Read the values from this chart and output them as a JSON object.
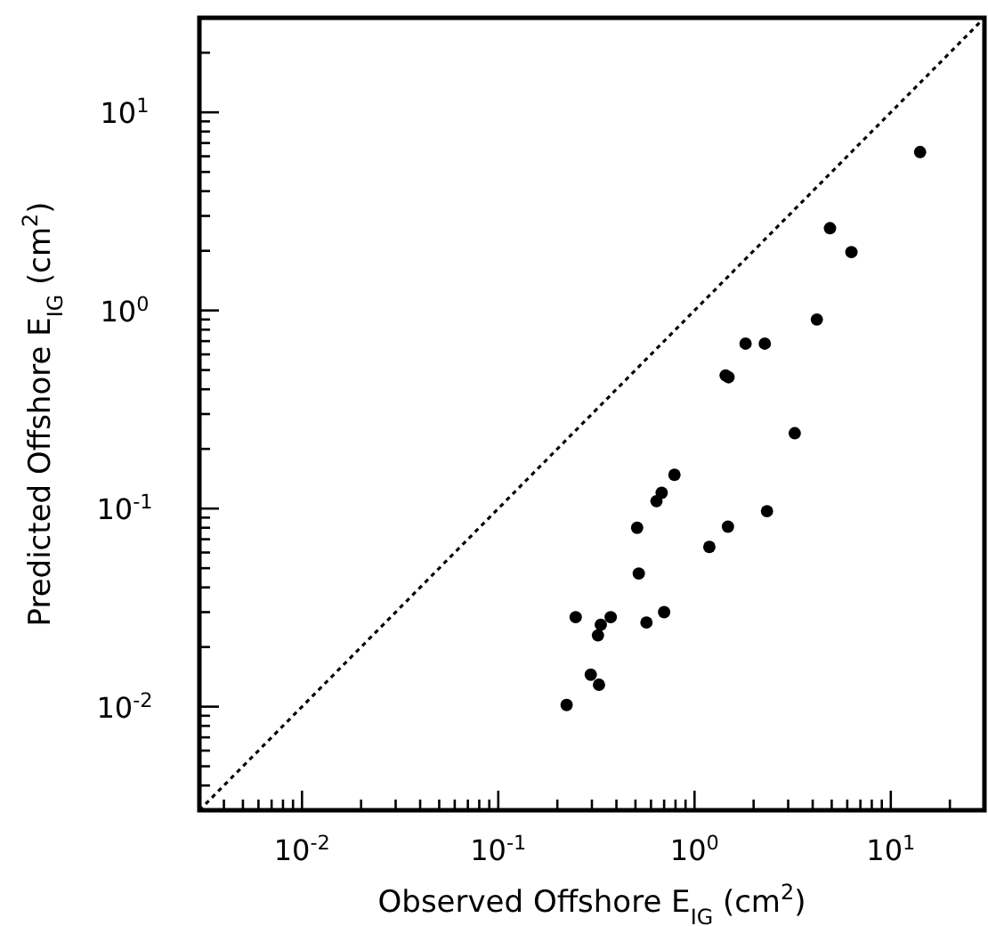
{
  "chart_data": {
    "type": "scatter",
    "xlabel": "Observed Offshore E$_{IG}$ (cm$^{2}$)",
    "ylabel": "Predicted Offshore E$_{IG}$ (cm$^{2}$)",
    "log": "xy",
    "grid": false,
    "xlim": [
      0.003,
      30
    ],
    "ylim": [
      0.003,
      30
    ],
    "xticks": [
      {
        "value": 0.004,
        "label": null
      },
      {
        "value": 0.005,
        "label": null
      },
      {
        "value": 0.006,
        "label": null
      },
      {
        "value": 0.007,
        "label": null
      },
      {
        "value": 0.008,
        "label": null
      },
      {
        "value": 0.009,
        "label": null
      },
      {
        "value": 0.01,
        "label": "10$^{-2}$"
      },
      {
        "value": 0.02,
        "label": null
      },
      {
        "value": 0.03,
        "label": null
      },
      {
        "value": 0.04,
        "label": null
      },
      {
        "value": 0.05,
        "label": null
      },
      {
        "value": 0.06,
        "label": null
      },
      {
        "value": 0.07,
        "label": null
      },
      {
        "value": 0.08,
        "label": null
      },
      {
        "value": 0.09,
        "label": null
      },
      {
        "value": 0.1,
        "label": "10$^{-1}$"
      },
      {
        "value": 0.2,
        "label": null
      },
      {
        "value": 0.3,
        "label": null
      },
      {
        "value": 0.4,
        "label": null
      },
      {
        "value": 0.5,
        "label": null
      },
      {
        "value": 0.6,
        "label": null
      },
      {
        "value": 0.7,
        "label": null
      },
      {
        "value": 0.8,
        "label": null
      },
      {
        "value": 0.9,
        "label": null
      },
      {
        "value": 1,
        "label": "10$^{0}$"
      },
      {
        "value": 2,
        "label": null
      },
      {
        "value": 3,
        "label": null
      },
      {
        "value": 4,
        "label": null
      },
      {
        "value": 5,
        "label": null
      },
      {
        "value": 6,
        "label": null
      },
      {
        "value": 7,
        "label": null
      },
      {
        "value": 8,
        "label": null
      },
      {
        "value": 9,
        "label": null
      },
      {
        "value": 10,
        "label": "10$^{1}$"
      },
      {
        "value": 20,
        "label": null
      }
    ],
    "yticks": [
      {
        "value": 0.004,
        "label": null
      },
      {
        "value": 0.005,
        "label": null
      },
      {
        "value": 0.006,
        "label": null
      },
      {
        "value": 0.007,
        "label": null
      },
      {
        "value": 0.008,
        "label": null
      },
      {
        "value": 0.009,
        "label": null
      },
      {
        "value": 0.01,
        "label": "10$^{-2}$"
      },
      {
        "value": 0.02,
        "label": null
      },
      {
        "value": 0.03,
        "label": null
      },
      {
        "value": 0.04,
        "label": null
      },
      {
        "value": 0.05,
        "label": null
      },
      {
        "value": 0.06,
        "label": null
      },
      {
        "value": 0.07,
        "label": null
      },
      {
        "value": 0.08,
        "label": null
      },
      {
        "value": 0.09,
        "label": null
      },
      {
        "value": 0.1,
        "label": "10$^{-1}$"
      },
      {
        "value": 0.2,
        "label": null
      },
      {
        "value": 0.3,
        "label": null
      },
      {
        "value": 0.4,
        "label": null
      },
      {
        "value": 0.5,
        "label": null
      },
      {
        "value": 0.6,
        "label": null
      },
      {
        "value": 0.7,
        "label": null
      },
      {
        "value": 0.8,
        "label": null
      },
      {
        "value": 0.9,
        "label": null
      },
      {
        "value": 1,
        "label": "10$^{0}$"
      },
      {
        "value": 2,
        "label": null
      },
      {
        "value": 3,
        "label": null
      },
      {
        "value": 4,
        "label": null
      },
      {
        "value": 5,
        "label": null
      },
      {
        "value": 6,
        "label": null
      },
      {
        "value": 7,
        "label": null
      },
      {
        "value": 8,
        "label": null
      },
      {
        "value": 9,
        "label": null
      },
      {
        "value": 10,
        "label": "10$^{1}$"
      },
      {
        "value": 20,
        "label": null
      }
    ],
    "series": [
      {
        "type": "scatter",
        "color": "#000000",
        "marker": "circle",
        "x": [
          14.1,
          4.9,
          6.3,
          4.2,
          1.82,
          2.28,
          1.44,
          1.49,
          3.24,
          0.79,
          0.68,
          0.64,
          0.51,
          1.48,
          2.34,
          1.19,
          0.52,
          0.248,
          0.333,
          0.374,
          0.322,
          0.569,
          0.7,
          0.296,
          0.326,
          0.223
        ],
        "values": [
          6.3,
          2.6,
          1.97,
          0.9,
          0.68,
          0.68,
          0.47,
          0.46,
          0.24,
          0.148,
          0.12,
          0.109,
          0.08,
          0.081,
          0.097,
          0.064,
          0.047,
          0.0283,
          0.0259,
          0.0283,
          0.0229,
          0.0266,
          0.03,
          0.0145,
          0.0129,
          0.0102
        ]
      },
      {
        "type": "line",
        "color": "#000000",
        "line_style": "dotted",
        "x": [
          0.003,
          30
        ],
        "values": [
          0.003,
          30
        ]
      }
    ]
  }
}
